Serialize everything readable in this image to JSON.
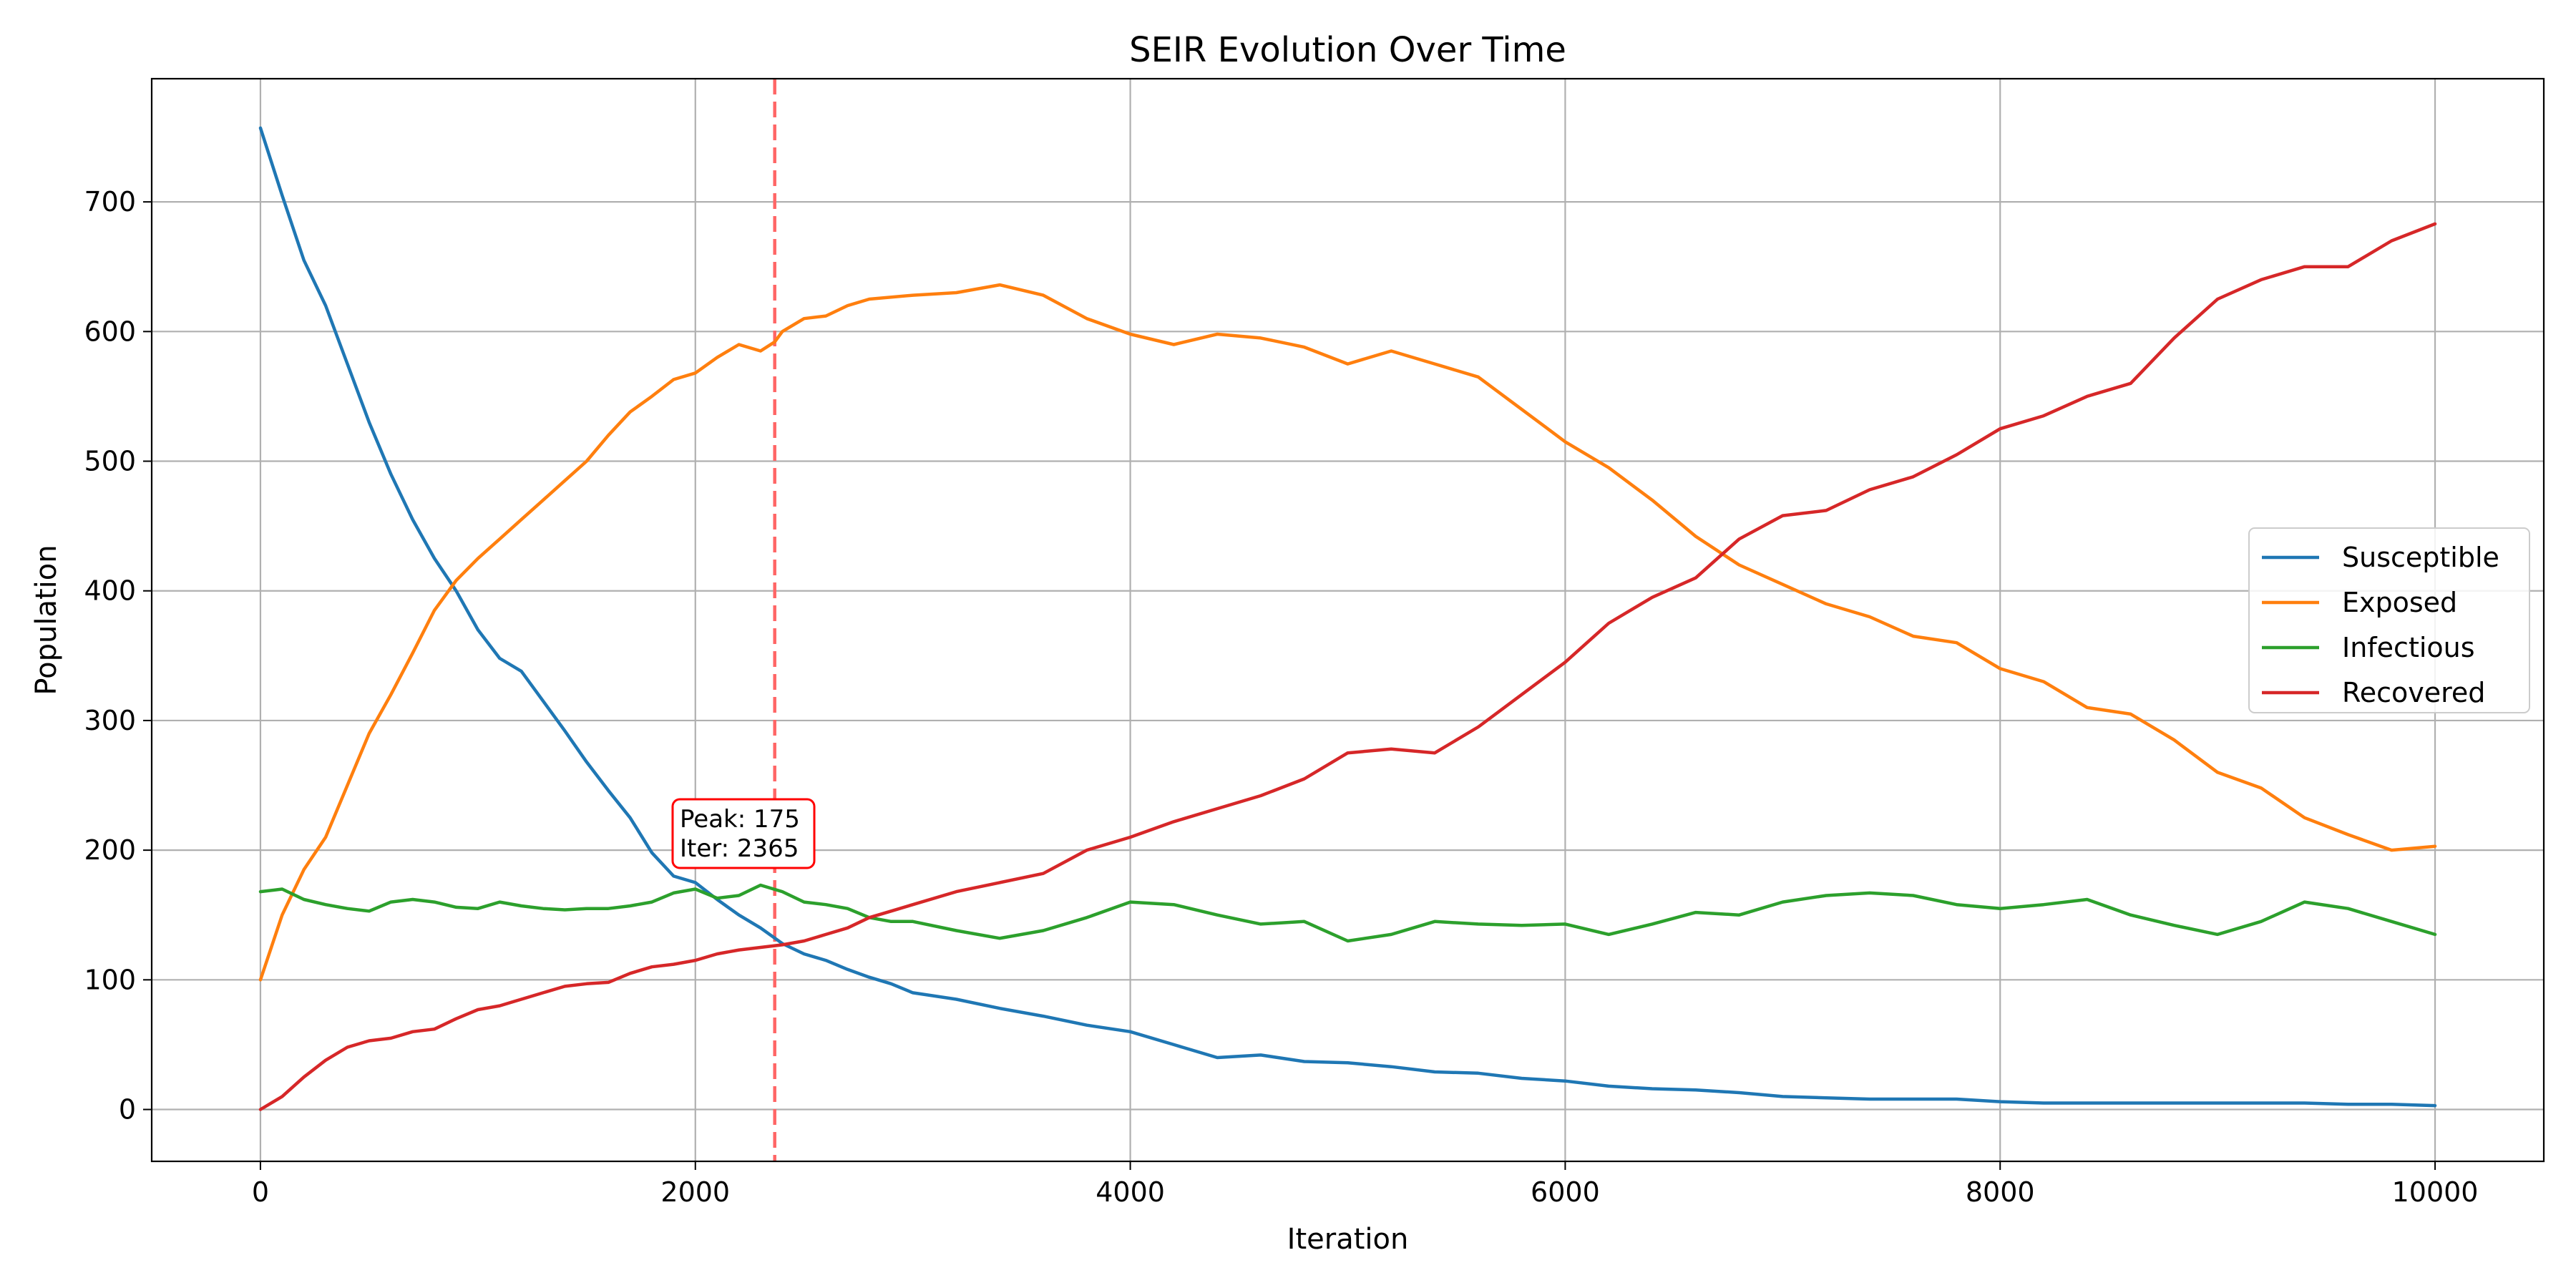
{
  "chart_data": {
    "type": "line",
    "title": "SEIR Evolution Over Time",
    "xlabel": "Iteration",
    "ylabel": "Population",
    "xlim": [
      -500,
      10500
    ],
    "ylim": [
      -40,
      795
    ],
    "xticks": [
      0,
      2000,
      4000,
      6000,
      8000,
      10000
    ],
    "yticks": [
      0,
      100,
      200,
      300,
      400,
      500,
      600,
      700
    ],
    "grid": true,
    "legend_position": "center-right",
    "series": [
      {
        "name": "Susceptible",
        "color": "#1f77b4",
        "x": [
          0,
          100,
          200,
          300,
          400,
          500,
          600,
          700,
          800,
          900,
          1000,
          1100,
          1200,
          1300,
          1400,
          1500,
          1600,
          1700,
          1800,
          1900,
          2000,
          2100,
          2200,
          2300,
          2400,
          2500,
          2600,
          2700,
          2800,
          2900,
          3000,
          3200,
          3400,
          3600,
          3800,
          4000,
          4200,
          4400,
          4600,
          4800,
          5000,
          5200,
          5400,
          5600,
          5800,
          6000,
          6200,
          6400,
          6600,
          6800,
          7000,
          7200,
          7400,
          7600,
          7800,
          8000,
          8200,
          8400,
          8600,
          8800,
          9000,
          9200,
          9400,
          9600,
          9800,
          10000
        ],
        "y": [
          757,
          705,
          655,
          620,
          575,
          530,
          490,
          455,
          425,
          400,
          370,
          348,
          338,
          315,
          292,
          268,
          246,
          225,
          198,
          180,
          175,
          162,
          150,
          140,
          128,
          120,
          115,
          108,
          102,
          97,
          90,
          85,
          78,
          72,
          65,
          60,
          50,
          40,
          42,
          37,
          36,
          33,
          29,
          28,
          24,
          22,
          18,
          16,
          15,
          13,
          10,
          9,
          8,
          8,
          8,
          6,
          5,
          5,
          5,
          5,
          5,
          5,
          5,
          4,
          4,
          3
        ]
      },
      {
        "name": "Exposed",
        "color": "#ff7f0e",
        "x": [
          0,
          100,
          200,
          300,
          400,
          500,
          600,
          700,
          800,
          900,
          1000,
          1100,
          1200,
          1300,
          1400,
          1500,
          1600,
          1700,
          1800,
          1900,
          2000,
          2100,
          2200,
          2300,
          2365,
          2400,
          2500,
          2600,
          2700,
          2800,
          3000,
          3200,
          3400,
          3600,
          3800,
          4000,
          4200,
          4400,
          4600,
          4800,
          5000,
          5200,
          5400,
          5600,
          5800,
          6000,
          6200,
          6400,
          6600,
          6800,
          7000,
          7200,
          7400,
          7600,
          7800,
          8000,
          8200,
          8400,
          8600,
          8800,
          9000,
          9200,
          9400,
          9600,
          9800,
          10000
        ],
        "y": [
          100,
          150,
          185,
          210,
          250,
          290,
          320,
          352,
          385,
          408,
          425,
          440,
          455,
          470,
          485,
          500,
          520,
          538,
          550,
          563,
          568,
          580,
          590,
          585,
          592,
          600,
          610,
          612,
          620,
          625,
          628,
          630,
          636,
          628,
          610,
          598,
          590,
          598,
          595,
          588,
          575,
          585,
          575,
          565,
          540,
          515,
          495,
          470,
          442,
          420,
          405,
          390,
          380,
          365,
          360,
          340,
          330,
          310,
          305,
          285,
          260,
          248,
          225,
          212,
          200,
          203
        ]
      },
      {
        "name": "Infectious",
        "color": "#2ca02c",
        "x": [
          0,
          100,
          200,
          300,
          400,
          500,
          600,
          700,
          800,
          900,
          1000,
          1100,
          1200,
          1300,
          1400,
          1500,
          1600,
          1700,
          1800,
          1900,
          2000,
          2100,
          2200,
          2300,
          2400,
          2500,
          2600,
          2700,
          2800,
          2900,
          3000,
          3200,
          3400,
          3600,
          3800,
          4000,
          4200,
          4400,
          4600,
          4800,
          5000,
          5200,
          5400,
          5600,
          5800,
          6000,
          6200,
          6400,
          6600,
          6800,
          7000,
          7200,
          7400,
          7600,
          7800,
          8000,
          8200,
          8400,
          8600,
          8800,
          9000,
          9200,
          9400,
          9600,
          9800,
          10000
        ],
        "y": [
          168,
          170,
          162,
          158,
          155,
          153,
          160,
          162,
          160,
          156,
          155,
          160,
          157,
          155,
          154,
          155,
          155,
          157,
          160,
          167,
          170,
          163,
          165,
          173,
          168,
          160,
          158,
          155,
          148,
          145,
          145,
          138,
          132,
          138,
          148,
          160,
          158,
          150,
          143,
          145,
          130,
          135,
          145,
          143,
          142,
          143,
          135,
          143,
          152,
          150,
          160,
          165,
          167,
          165,
          158,
          155,
          158,
          162,
          150,
          142,
          135,
          145,
          160,
          155,
          145,
          135
        ]
      },
      {
        "name": "Recovered",
        "color": "#d62728",
        "x": [
          0,
          100,
          200,
          300,
          400,
          500,
          600,
          700,
          800,
          900,
          1000,
          1100,
          1200,
          1300,
          1400,
          1500,
          1600,
          1700,
          1800,
          1900,
          2000,
          2100,
          2200,
          2300,
          2400,
          2500,
          2600,
          2700,
          2800,
          2900,
          3000,
          3200,
          3400,
          3600,
          3800,
          4000,
          4200,
          4400,
          4600,
          4800,
          5000,
          5200,
          5400,
          5600,
          5800,
          6000,
          6200,
          6400,
          6600,
          6800,
          7000,
          7200,
          7400,
          7600,
          7800,
          8000,
          8200,
          8400,
          8600,
          8800,
          9000,
          9200,
          9400,
          9600,
          9800,
          10000
        ],
        "y": [
          0,
          10,
          25,
          38,
          48,
          53,
          55,
          60,
          62,
          70,
          77,
          80,
          85,
          90,
          95,
          97,
          98,
          105,
          110,
          112,
          115,
          120,
          123,
          125,
          127,
          130,
          135,
          140,
          148,
          153,
          158,
          168,
          175,
          182,
          200,
          210,
          222,
          232,
          242,
          255,
          275,
          278,
          275,
          295,
          320,
          345,
          375,
          395,
          410,
          440,
          458,
          462,
          478,
          488,
          505,
          525,
          535,
          550,
          560,
          595,
          625,
          640,
          650,
          650,
          670,
          683
        ]
      }
    ],
    "annotation": {
      "line_x": 2365,
      "line_color": "#ff6666",
      "line_style": "dashed",
      "box_border_color": "#ff0000",
      "lines": [
        "Peak: 175",
        "Iter: 2365"
      ]
    }
  }
}
